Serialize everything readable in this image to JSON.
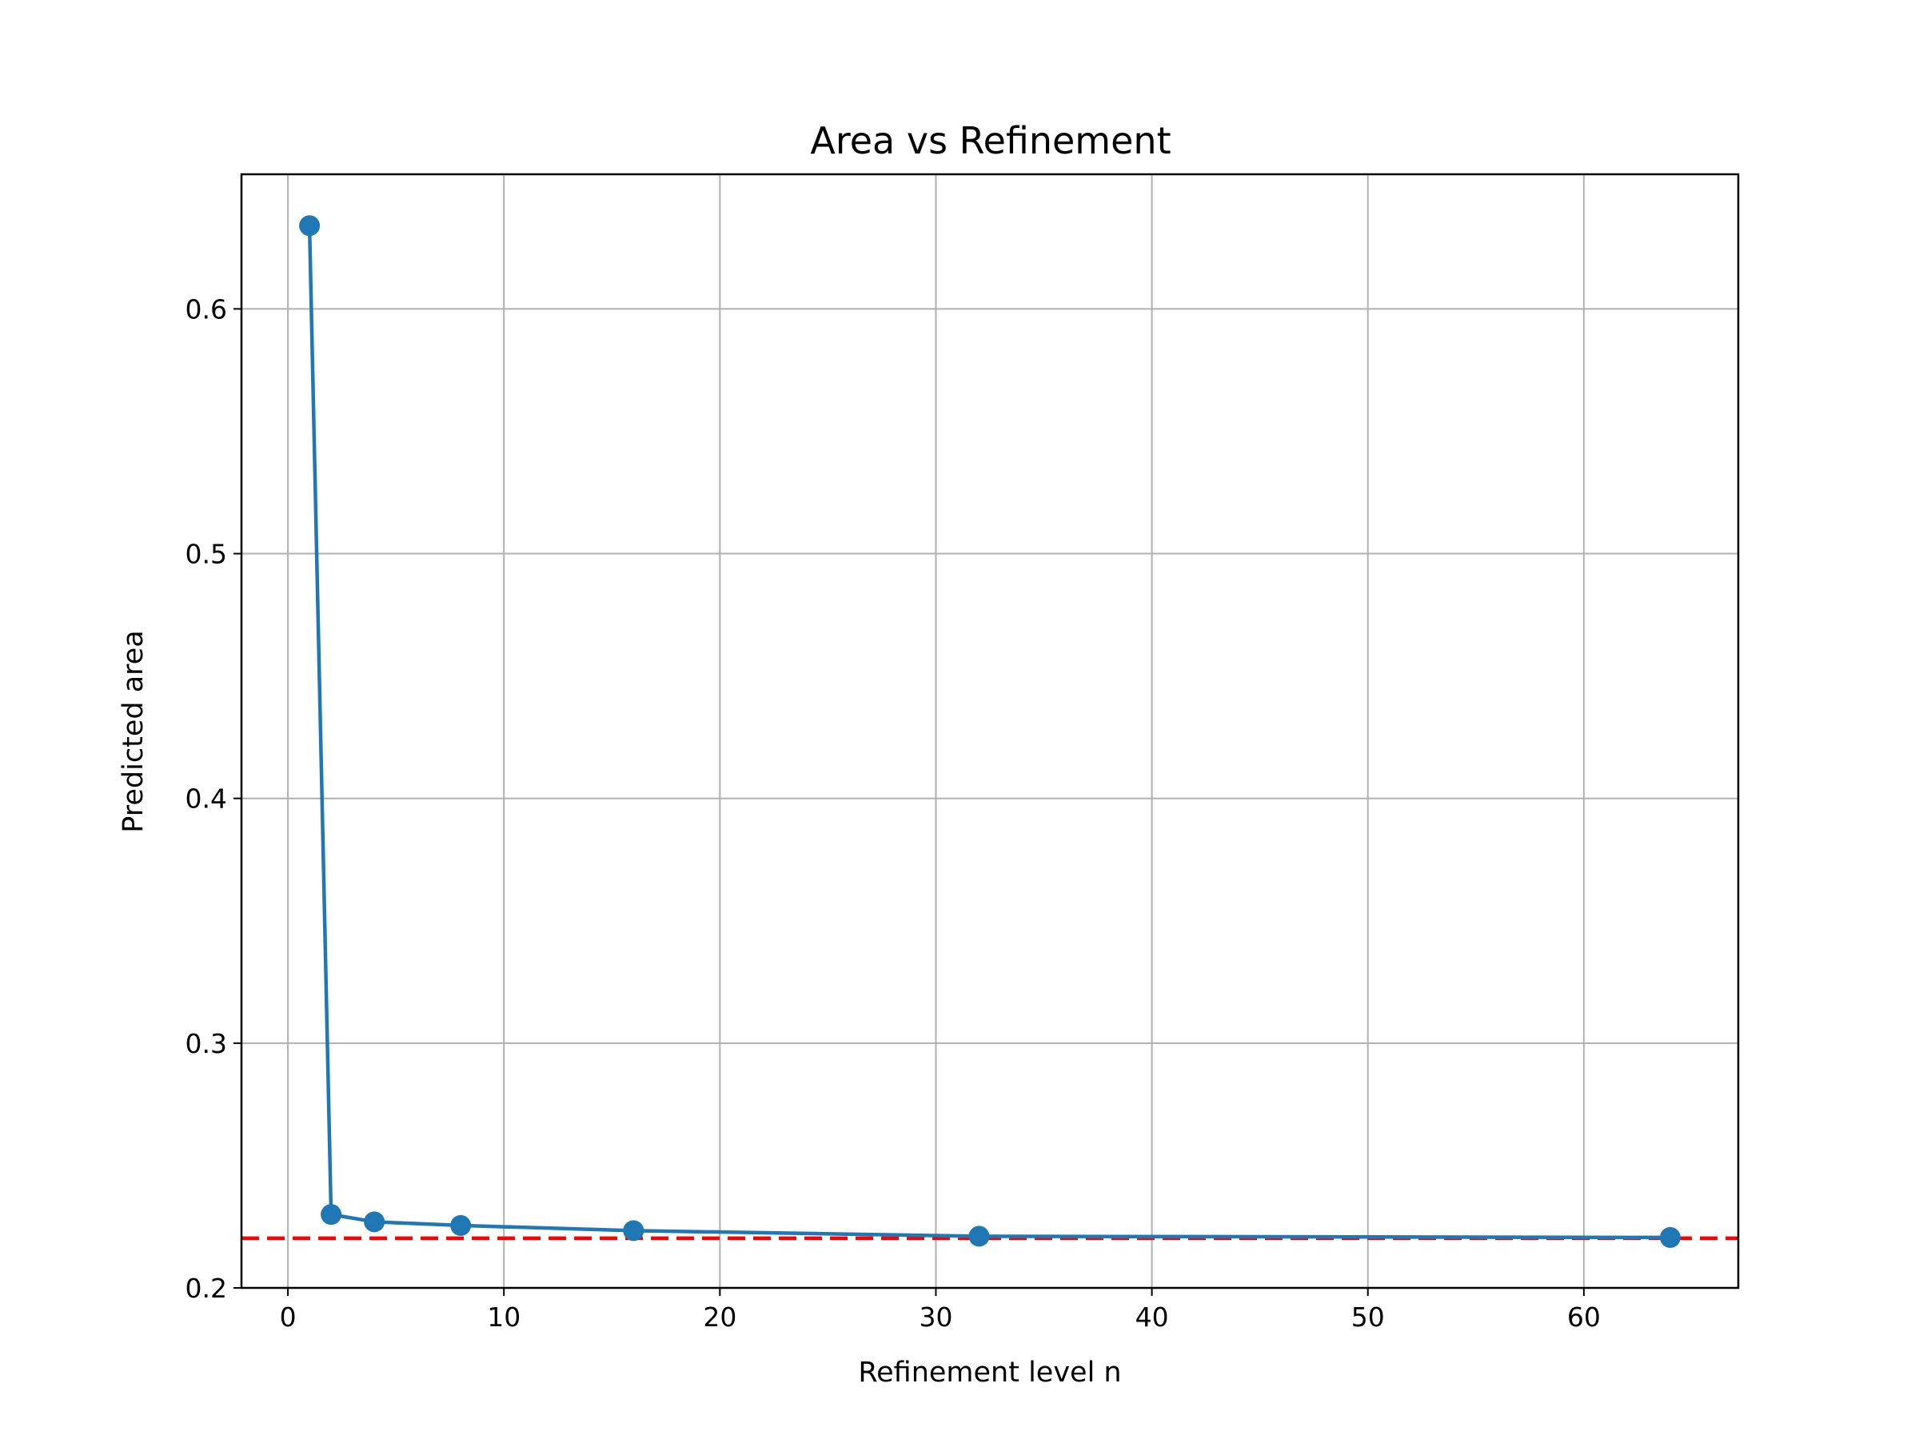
{
  "chart_data": {
    "type": "line",
    "title": "Area vs Refinement",
    "xlabel": "Refinement level n",
    "ylabel": "Predicted area",
    "xlim": [
      -2.15,
      67.15
    ],
    "ylim": [
      0.2,
      0.655
    ],
    "xticks": [
      0,
      10,
      20,
      30,
      40,
      50,
      60
    ],
    "yticks": [
      0.2,
      0.3,
      0.4,
      0.5,
      0.6
    ],
    "grid": true,
    "legend": "none",
    "series": [
      {
        "x": [
          1,
          2,
          4,
          8,
          16,
          32,
          64
        ],
        "y": [
          0.634,
          0.23,
          0.227,
          0.2255,
          0.2234,
          0.2211,
          0.2206
        ],
        "color": "#1f77b4",
        "marker": "circle",
        "line_style": "solid"
      }
    ],
    "reference_line": {
      "y": 0.2203,
      "color": "#ff0000",
      "line_style": "dashed"
    }
  }
}
